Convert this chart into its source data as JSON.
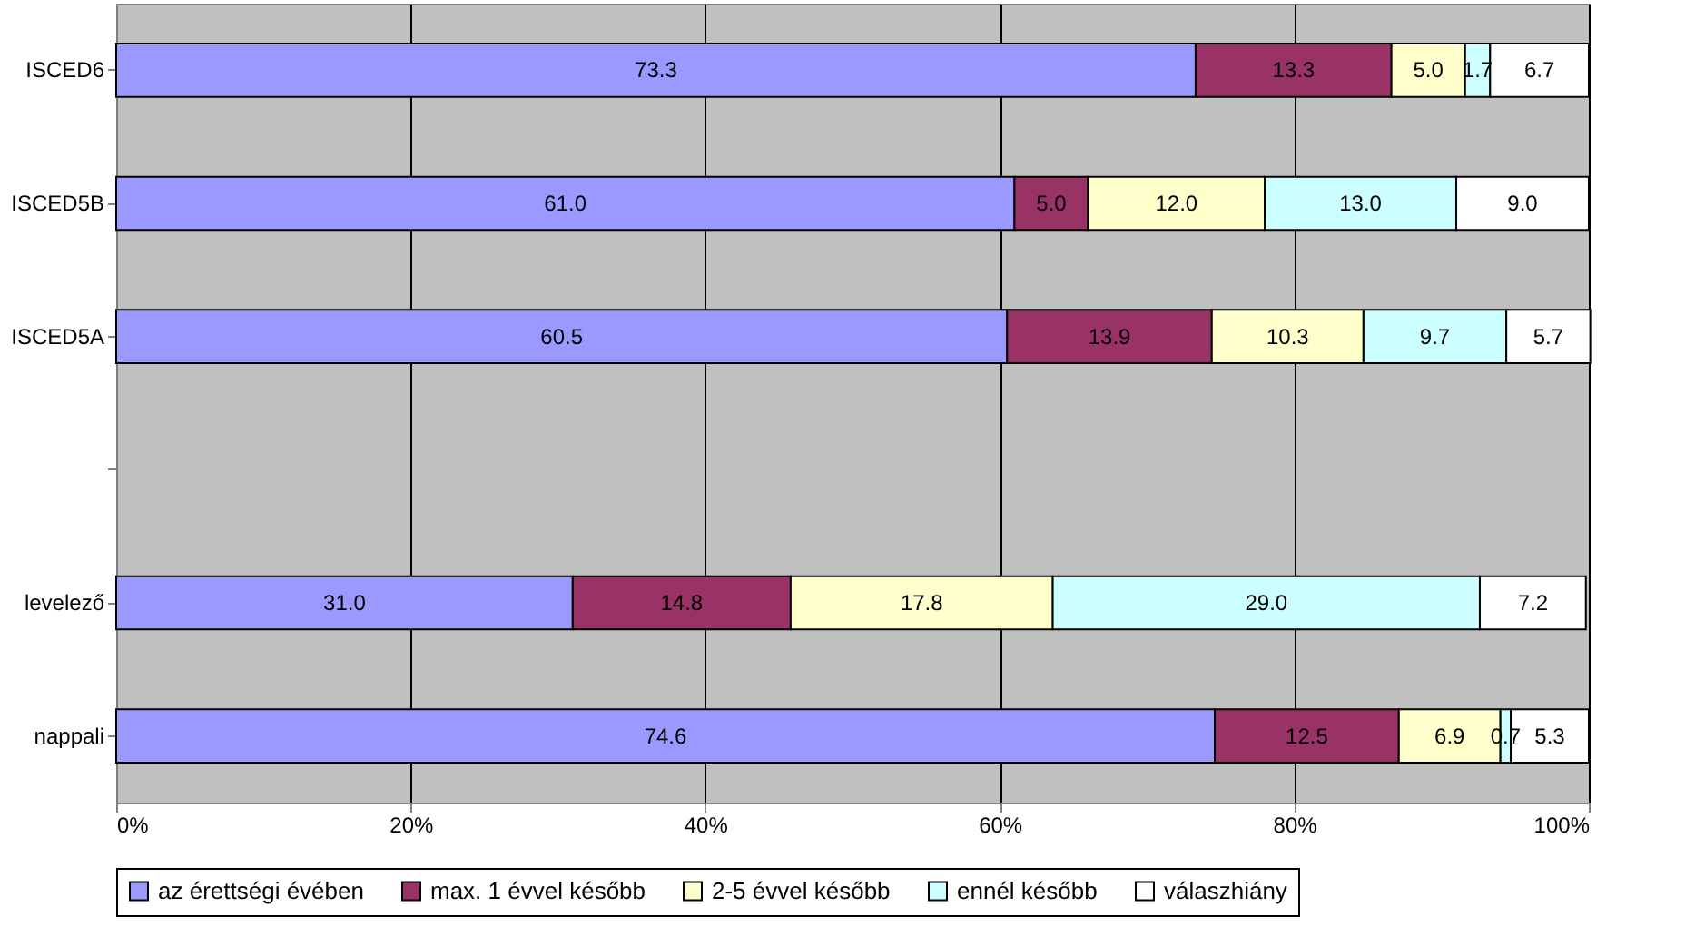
{
  "chart_data": {
    "type": "bar",
    "orientation": "horizontal",
    "stacked": true,
    "grid": "x",
    "legend": "bottom",
    "categories": [
      "ISCED6",
      "ISCED5B",
      "ISCED5A",
      null,
      "levelező",
      "nappali"
    ],
    "series": [
      {
        "name": "az érettségi évében",
        "color": "#9999ff",
        "values": [
          73.3,
          61.0,
          60.5,
          null,
          31.0,
          74.6
        ],
        "value_labels": [
          "73.3",
          "61.0",
          "60.5",
          null,
          "31.0",
          "74.6"
        ]
      },
      {
        "name": "max. 1 évvel később",
        "color": "#993366",
        "values": [
          13.3,
          5.0,
          13.9,
          null,
          14.8,
          12.5
        ],
        "value_labels": [
          "13.3",
          "5.0",
          "13.9",
          null,
          "14.8",
          "12.5"
        ]
      },
      {
        "name": "2-5 évvel később",
        "color": "#ffffcc",
        "values": [
          5.0,
          12.0,
          10.3,
          null,
          17.8,
          6.9
        ],
        "value_labels": [
          "5.0",
          "12.0",
          "10.3",
          null,
          "17.8",
          "6.9"
        ]
      },
      {
        "name": "ennél később",
        "color": "#ccffff",
        "values": [
          1.7,
          13.0,
          9.7,
          null,
          29.0,
          0.7
        ],
        "value_labels": [
          "1.7",
          "13.0",
          "9.7",
          null,
          "29.0",
          "0.7"
        ]
      },
      {
        "name": "válaszhiány",
        "color": "#ffffff",
        "values": [
          6.7,
          9.0,
          5.7,
          null,
          7.2,
          5.3
        ],
        "value_labels": [
          "6.7",
          "9.0",
          "5.7",
          null,
          "7.2",
          "5.3"
        ]
      }
    ],
    "xlim": [
      0,
      100
    ],
    "xticks": [
      {
        "value": 0,
        "label": "0%"
      },
      {
        "value": 20,
        "label": "20%"
      },
      {
        "value": 40,
        "label": "40%"
      },
      {
        "value": 60,
        "label": "60%"
      },
      {
        "value": 80,
        "label": "80%"
      },
      {
        "value": 100,
        "label": "100%"
      }
    ]
  }
}
